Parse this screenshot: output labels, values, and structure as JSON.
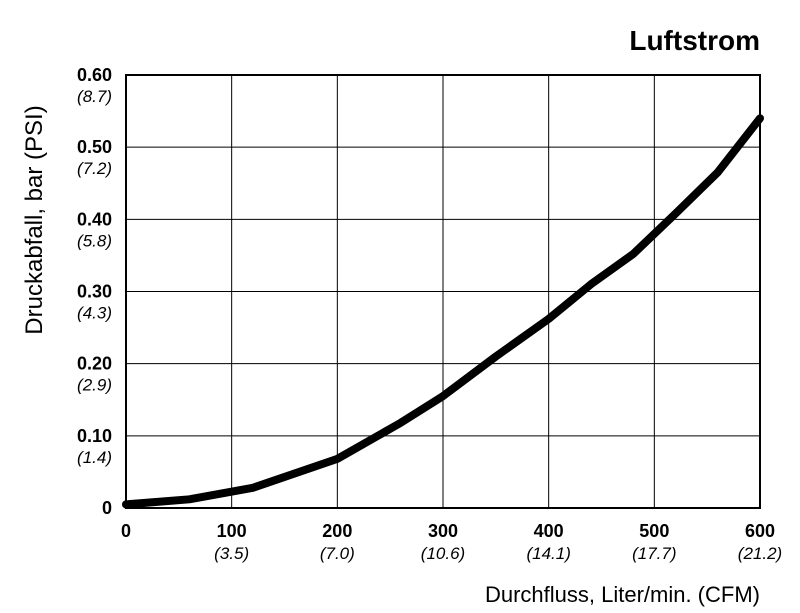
{
  "chart_data": {
    "type": "line",
    "title": "Luftstrom",
    "xlabel": "Durchfluss, Liter/min. (CFM)",
    "ylabel": "Druckabfall, bar (PSI)",
    "xlim": [
      0,
      600
    ],
    "ylim": [
      0,
      0.6
    ],
    "grid": true,
    "x_ticks": [
      {
        "value": 0,
        "label": "0",
        "sub": ""
      },
      {
        "value": 100,
        "label": "100",
        "sub": "(3.5)"
      },
      {
        "value": 200,
        "label": "200",
        "sub": "(7.0)"
      },
      {
        "value": 300,
        "label": "300",
        "sub": "(10.6)"
      },
      {
        "value": 400,
        "label": "400",
        "sub": "(14.1)"
      },
      {
        "value": 500,
        "label": "500",
        "sub": "(17.7)"
      },
      {
        "value": 600,
        "label": "600",
        "sub": "(21.2)"
      }
    ],
    "y_ticks": [
      {
        "value": 0,
        "label": "0",
        "sub": ""
      },
      {
        "value": 0.1,
        "label": "0.10",
        "sub": "(1.4)"
      },
      {
        "value": 0.2,
        "label": "0.20",
        "sub": "(2.9)"
      },
      {
        "value": 0.3,
        "label": "0.30",
        "sub": "(4.3)"
      },
      {
        "value": 0.4,
        "label": "0.40",
        "sub": "(5.8)"
      },
      {
        "value": 0.5,
        "label": "0.50",
        "sub": "(7.2)"
      },
      {
        "value": 0.6,
        "label": "0.60",
        "sub": "(8.7)"
      }
    ],
    "series": [
      {
        "color": "#000000",
        "x": [
          0,
          60,
          120,
          200,
          260,
          300,
          350,
          400,
          440,
          480,
          520,
          560,
          600
        ],
        "y": [
          0.005,
          0.012,
          0.028,
          0.068,
          0.118,
          0.155,
          0.21,
          0.262,
          0.31,
          0.352,
          0.408,
          0.465,
          0.54
        ]
      }
    ]
  }
}
